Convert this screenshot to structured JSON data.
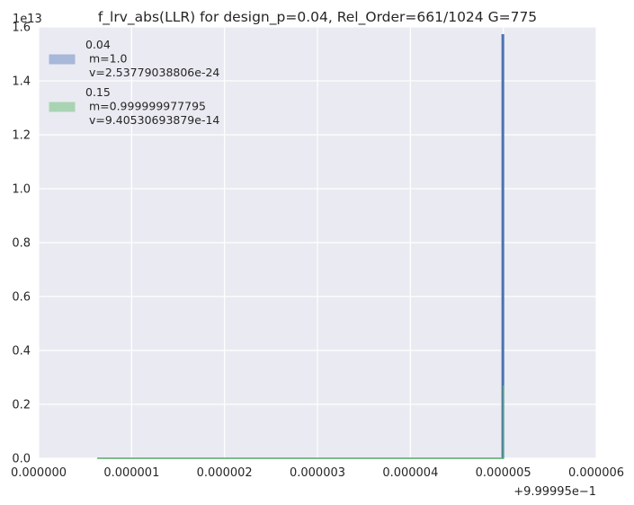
{
  "chart_data": {
    "type": "line",
    "title": "f_lrv_abs(LLR) for design_p=0.04, Rel_Order=661/1024 G=775",
    "y_exponent_label": "1e13",
    "x_offset_label": "+9.99995e−1",
    "xlim": [
      0.0,
      6e-06
    ],
    "ylim": [
      0.0,
      1.6
    ],
    "x_ticks": [
      0.0,
      1e-06,
      2e-06,
      3e-06,
      4e-06,
      5e-06,
      6e-06
    ],
    "x_tick_labels": [
      "0.000000",
      "0.000001",
      "0.000002",
      "0.000003",
      "0.000004",
      "0.000005",
      "0.000006"
    ],
    "y_ticks": [
      0.0,
      0.2,
      0.4,
      0.6,
      0.8,
      1.0,
      1.2,
      1.4,
      1.6
    ],
    "y_tick_labels": [
      "0.0",
      "0.2",
      "0.4",
      "0.6",
      "0.8",
      "1.0",
      "1.2",
      "1.4",
      "1.6"
    ],
    "grid": true,
    "legend_position": "top-left",
    "series": [
      {
        "name": "0.04",
        "legend_lines": [
          "0.04",
          " m=1.0",
          " v=2.53779038806e-24"
        ],
        "color": "#4c72b0",
        "fill_color": "#a7b8d8",
        "x": [
          4.99e-06,
          4.99e-06,
          5e-06,
          5e-06
        ],
        "y": [
          0.0,
          1.57,
          1.57,
          0.0
        ]
      },
      {
        "name": "0.15",
        "legend_lines": [
          "0.15",
          " m=0.999999977795",
          " v=9.40530693879e-14"
        ],
        "color": "#55a868",
        "fill_color": "#a9d4b3",
        "x": [
          6.3e-07,
          4.99e-06,
          5e-06,
          5e-06,
          5e-06
        ],
        "y": [
          0.0,
          0.0,
          0.0,
          0.27,
          0.0
        ]
      }
    ]
  }
}
